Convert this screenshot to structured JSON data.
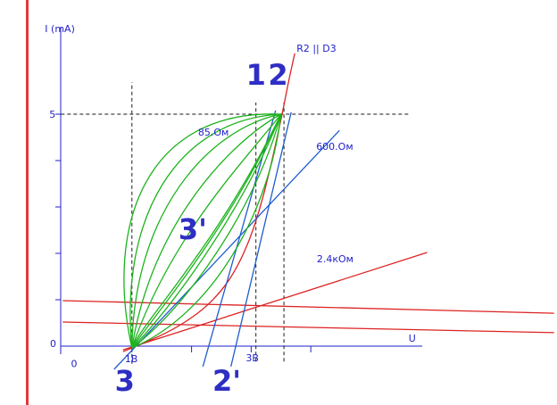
{
  "colors": {
    "background": "#ffffff",
    "axis": "#2222cc",
    "text": "#2222cc",
    "big_label": "#2e2ec4",
    "red": "#dd2222",
    "green": "#1db31d",
    "blue": "#1f5ccc",
    "dashed": "#1a1a1a",
    "margin_line": "#e03a3a"
  },
  "chart_data": {
    "type": "line",
    "title": "",
    "xlabel": "U",
    "ylabel": "I (mA)",
    "x_unit": "V",
    "y_unit": "mA",
    "x_axis_ticks_u": [
      1,
      2,
      3,
      4
    ],
    "y_axis_ticks_i": [
      1,
      2,
      3,
      4,
      5
    ],
    "x_tick_labels": {
      "0": "0",
      "1": "1В",
      "3": "3В"
    },
    "y_tick_labels": {
      "0": "0",
      "5": "5"
    },
    "guides": {
      "horizontal": [
        {
          "i": 5,
          "u_from": -0.19,
          "u_to": 5.64
        }
      ],
      "vertical": [
        {
          "u": 1.0,
          "i_from": -0.38,
          "i_to": 5.69
        },
        {
          "u": 3.08,
          "i_from": -0.33,
          "i_to": 5.25
        },
        {
          "u": 3.55,
          "i_from": -0.33,
          "i_to": 5.25
        }
      ]
    },
    "series": [
      {
        "name": "r2-parallel-d3-curve",
        "label": "R2 || D3",
        "color_key": "red",
        "shape": "smooth",
        "points": [
          [
            0.85,
            -0.12
          ],
          [
            1.33,
            0.13
          ],
          [
            1.78,
            0.42
          ],
          [
            2.2,
            0.79
          ],
          [
            2.53,
            1.23
          ],
          [
            2.77,
            1.71
          ],
          [
            2.98,
            2.31
          ],
          [
            3.14,
            2.94
          ],
          [
            3.28,
            3.62
          ],
          [
            3.4,
            4.29
          ],
          [
            3.52,
            5.0
          ],
          [
            3.62,
            5.67
          ],
          [
            3.73,
            6.31
          ]
        ]
      },
      {
        "name": "load-line-2400-ohm",
        "label": "2.4кОм",
        "color_key": "red",
        "shape": "line",
        "points": [
          [
            0.85,
            -0.08
          ],
          [
            5.95,
            2.02
          ]
        ]
      },
      {
        "name": "red-flat-line-upper",
        "label": "",
        "color_key": "red",
        "shape": "line",
        "points": [
          [
            -0.16,
            0.98
          ],
          [
            8.08,
            0.71
          ]
        ]
      },
      {
        "name": "red-flat-line-lower",
        "label": "",
        "color_key": "red",
        "shape": "line",
        "points": [
          [
            -0.16,
            0.52
          ],
          [
            8.08,
            0.29
          ]
        ]
      },
      {
        "name": "load-line-600-ohm",
        "label": "600.Ом",
        "color_key": "blue",
        "shape": "line",
        "points": [
          [
            0.7,
            -0.5
          ],
          [
            4.48,
            4.65
          ]
        ]
      },
      {
        "name": "load-line-85-ohm-a",
        "label": "85.Ом",
        "color_key": "blue",
        "shape": "line",
        "points": [
          [
            2.19,
            -0.44
          ],
          [
            3.41,
            5.08
          ]
        ]
      },
      {
        "name": "load-line-85-ohm-b",
        "label": "85.Ом",
        "color_key": "blue",
        "shape": "line",
        "points": [
          [
            2.66,
            -0.44
          ],
          [
            3.67,
            5.04
          ]
        ]
      },
      {
        "name": "trajectory-loop-1",
        "color_key": "green",
        "shape": "loop",
        "bezier": [
          [
            1.0,
            -0.04
          ],
          [
            0.55,
            2.56
          ],
          [
            1.21,
            5.12
          ],
          [
            3.5,
            5.0
          ],
          [
            3.31,
            2.89
          ],
          [
            2.35,
            0.69
          ],
          [
            1.0,
            -0.04
          ]
        ]
      },
      {
        "name": "trajectory-loop-2",
        "color_key": "green",
        "shape": "loop",
        "bezier": [
          [
            1.0,
            -0.04
          ],
          [
            0.79,
            2.77
          ],
          [
            1.75,
            4.89
          ],
          [
            3.5,
            5.0
          ],
          [
            3.08,
            2.96
          ],
          [
            1.9,
            0.81
          ],
          [
            1.0,
            -0.04
          ]
        ]
      },
      {
        "name": "trajectory-loop-3",
        "color_key": "green",
        "shape": "loop",
        "bezier": [
          [
            1.0,
            -0.04
          ],
          [
            1.03,
            2.89
          ],
          [
            2.29,
            4.69
          ],
          [
            3.5,
            5.0
          ],
          [
            2.84,
            2.85
          ],
          [
            1.59,
            0.71
          ],
          [
            1.0,
            -0.04
          ]
        ]
      },
      {
        "name": "trajectory-loop-4",
        "color_key": "green",
        "shape": "loop",
        "bezier": [
          [
            1.0,
            -0.04
          ],
          [
            1.33,
            2.65
          ],
          [
            2.67,
            4.42
          ],
          [
            3.5,
            5.0
          ],
          [
            2.62,
            2.5
          ],
          [
            1.35,
            0.62
          ],
          [
            1.0,
            -0.04
          ]
        ]
      },
      {
        "name": "trajectory-loop-5",
        "color_key": "green",
        "shape": "loop",
        "bezier": [
          [
            1.0,
            -0.04
          ],
          [
            1.65,
            2.39
          ],
          [
            2.92,
            4.04
          ],
          [
            3.5,
            5.0
          ],
          [
            2.43,
            2.15
          ],
          [
            1.17,
            0.52
          ],
          [
            1.0,
            -0.04
          ]
        ]
      }
    ],
    "labels": [
      {
        "name": "y-axis-title",
        "text": "I (mA)",
        "u": -0.46,
        "i": 6.77,
        "size": 11,
        "anchor": "start",
        "bold": false
      },
      {
        "name": "y-tick-label-5",
        "text": "5",
        "u": -0.28,
        "i": 4.92,
        "size": 11,
        "anchor": "end",
        "bold": false
      },
      {
        "name": "y-tick-label-0",
        "text": "0",
        "u": -0.27,
        "i": -0.02,
        "size": 11,
        "anchor": "end",
        "bold": false
      },
      {
        "name": "x-origin-label-0",
        "text": "0",
        "u": 0.03,
        "i": -0.45,
        "size": 11,
        "anchor": "middle",
        "bold": false
      },
      {
        "name": "x-axis-title",
        "text": "U",
        "u": 5.64,
        "i": 0.1,
        "size": 11,
        "anchor": "start",
        "bold": false
      },
      {
        "name": "x-tick-label-1v",
        "text": "1В",
        "u": 0.99,
        "i": -0.35,
        "size": 11,
        "anchor": "middle",
        "bold": false
      },
      {
        "name": "x-tick-label-3v",
        "text": "3В",
        "u": 3.02,
        "i": -0.33,
        "size": 11,
        "anchor": "middle",
        "bold": false
      },
      {
        "name": "curve-label-r2-d3",
        "text": "R2 || D3",
        "u": 3.76,
        "i": 6.35,
        "size": 11,
        "anchor": "start",
        "bold": false
      },
      {
        "name": "curve-label-85-ohm",
        "text": "85.Ом",
        "u": 2.11,
        "i": 4.54,
        "size": 11,
        "anchor": "start",
        "bold": false
      },
      {
        "name": "curve-label-600-ohm",
        "text": "600.Ом",
        "u": 4.09,
        "i": 4.23,
        "size": 11,
        "anchor": "start",
        "bold": false
      },
      {
        "name": "curve-label-2k4-ohm",
        "text": "2.4кОм",
        "u": 4.1,
        "i": 1.81,
        "size": 11,
        "anchor": "start",
        "bold": false
      },
      {
        "name": "point-label-1",
        "text": "1",
        "u": 3.08,
        "i": 5.63,
        "size": 32,
        "anchor": "middle",
        "bold": true
      },
      {
        "name": "point-label-2",
        "text": "2",
        "u": 3.45,
        "i": 5.63,
        "size": 32,
        "anchor": "middle",
        "bold": true
      },
      {
        "name": "point-label-3-prime",
        "text": "3'",
        "u": 2.02,
        "i": 2.31,
        "size": 32,
        "anchor": "middle",
        "bold": true
      },
      {
        "name": "point-label-3",
        "text": "3",
        "u": 0.88,
        "i": -0.96,
        "size": 32,
        "anchor": "middle",
        "bold": true
      },
      {
        "name": "point-label-2-prime",
        "text": "2'",
        "u": 2.59,
        "i": -0.96,
        "size": 32,
        "anchor": "middle",
        "bold": true
      }
    ]
  }
}
